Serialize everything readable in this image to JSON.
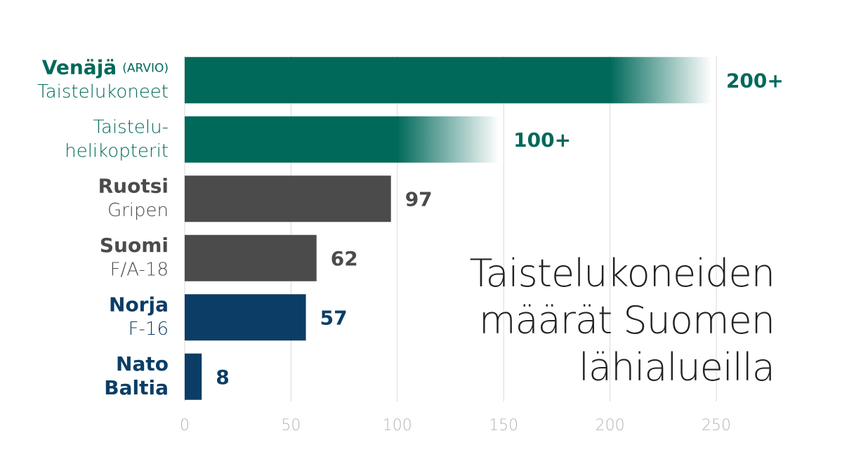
{
  "chart_data": {
    "type": "barh",
    "title": [
      "Taistelukoneiden",
      "määrät Suomen",
      "lähialueilla"
    ],
    "categories": [
      {
        "name": "Venäjä",
        "note": "(ARVIO)",
        "model": "Taistelukoneet"
      },
      {
        "model_lines": [
          "Taistelu-",
          "helikopterit"
        ]
      },
      {
        "name": "Ruotsi",
        "model": "Gripen"
      },
      {
        "name": "Suomi",
        "model": "F/A-18"
      },
      {
        "name": "Norja",
        "model": "F-16"
      },
      {
        "name_lines": [
          "Nato",
          "Baltia"
        ]
      }
    ],
    "values": [
      200,
      100,
      97,
      62,
      57,
      8
    ],
    "value_labels": [
      "200+",
      "100+",
      "97",
      "62",
      "57",
      "8"
    ],
    "colors": [
      "#00695a",
      "#00695a",
      "#4b4b4b",
      "#4b4b4b",
      "#0c3d66",
      "#0c3d66"
    ],
    "fade": [
      true,
      true,
      false,
      false,
      false,
      false
    ],
    "xlim": [
      0,
      250
    ],
    "xticks": [
      0,
      50,
      100,
      150,
      200,
      250
    ],
    "grid": true
  }
}
